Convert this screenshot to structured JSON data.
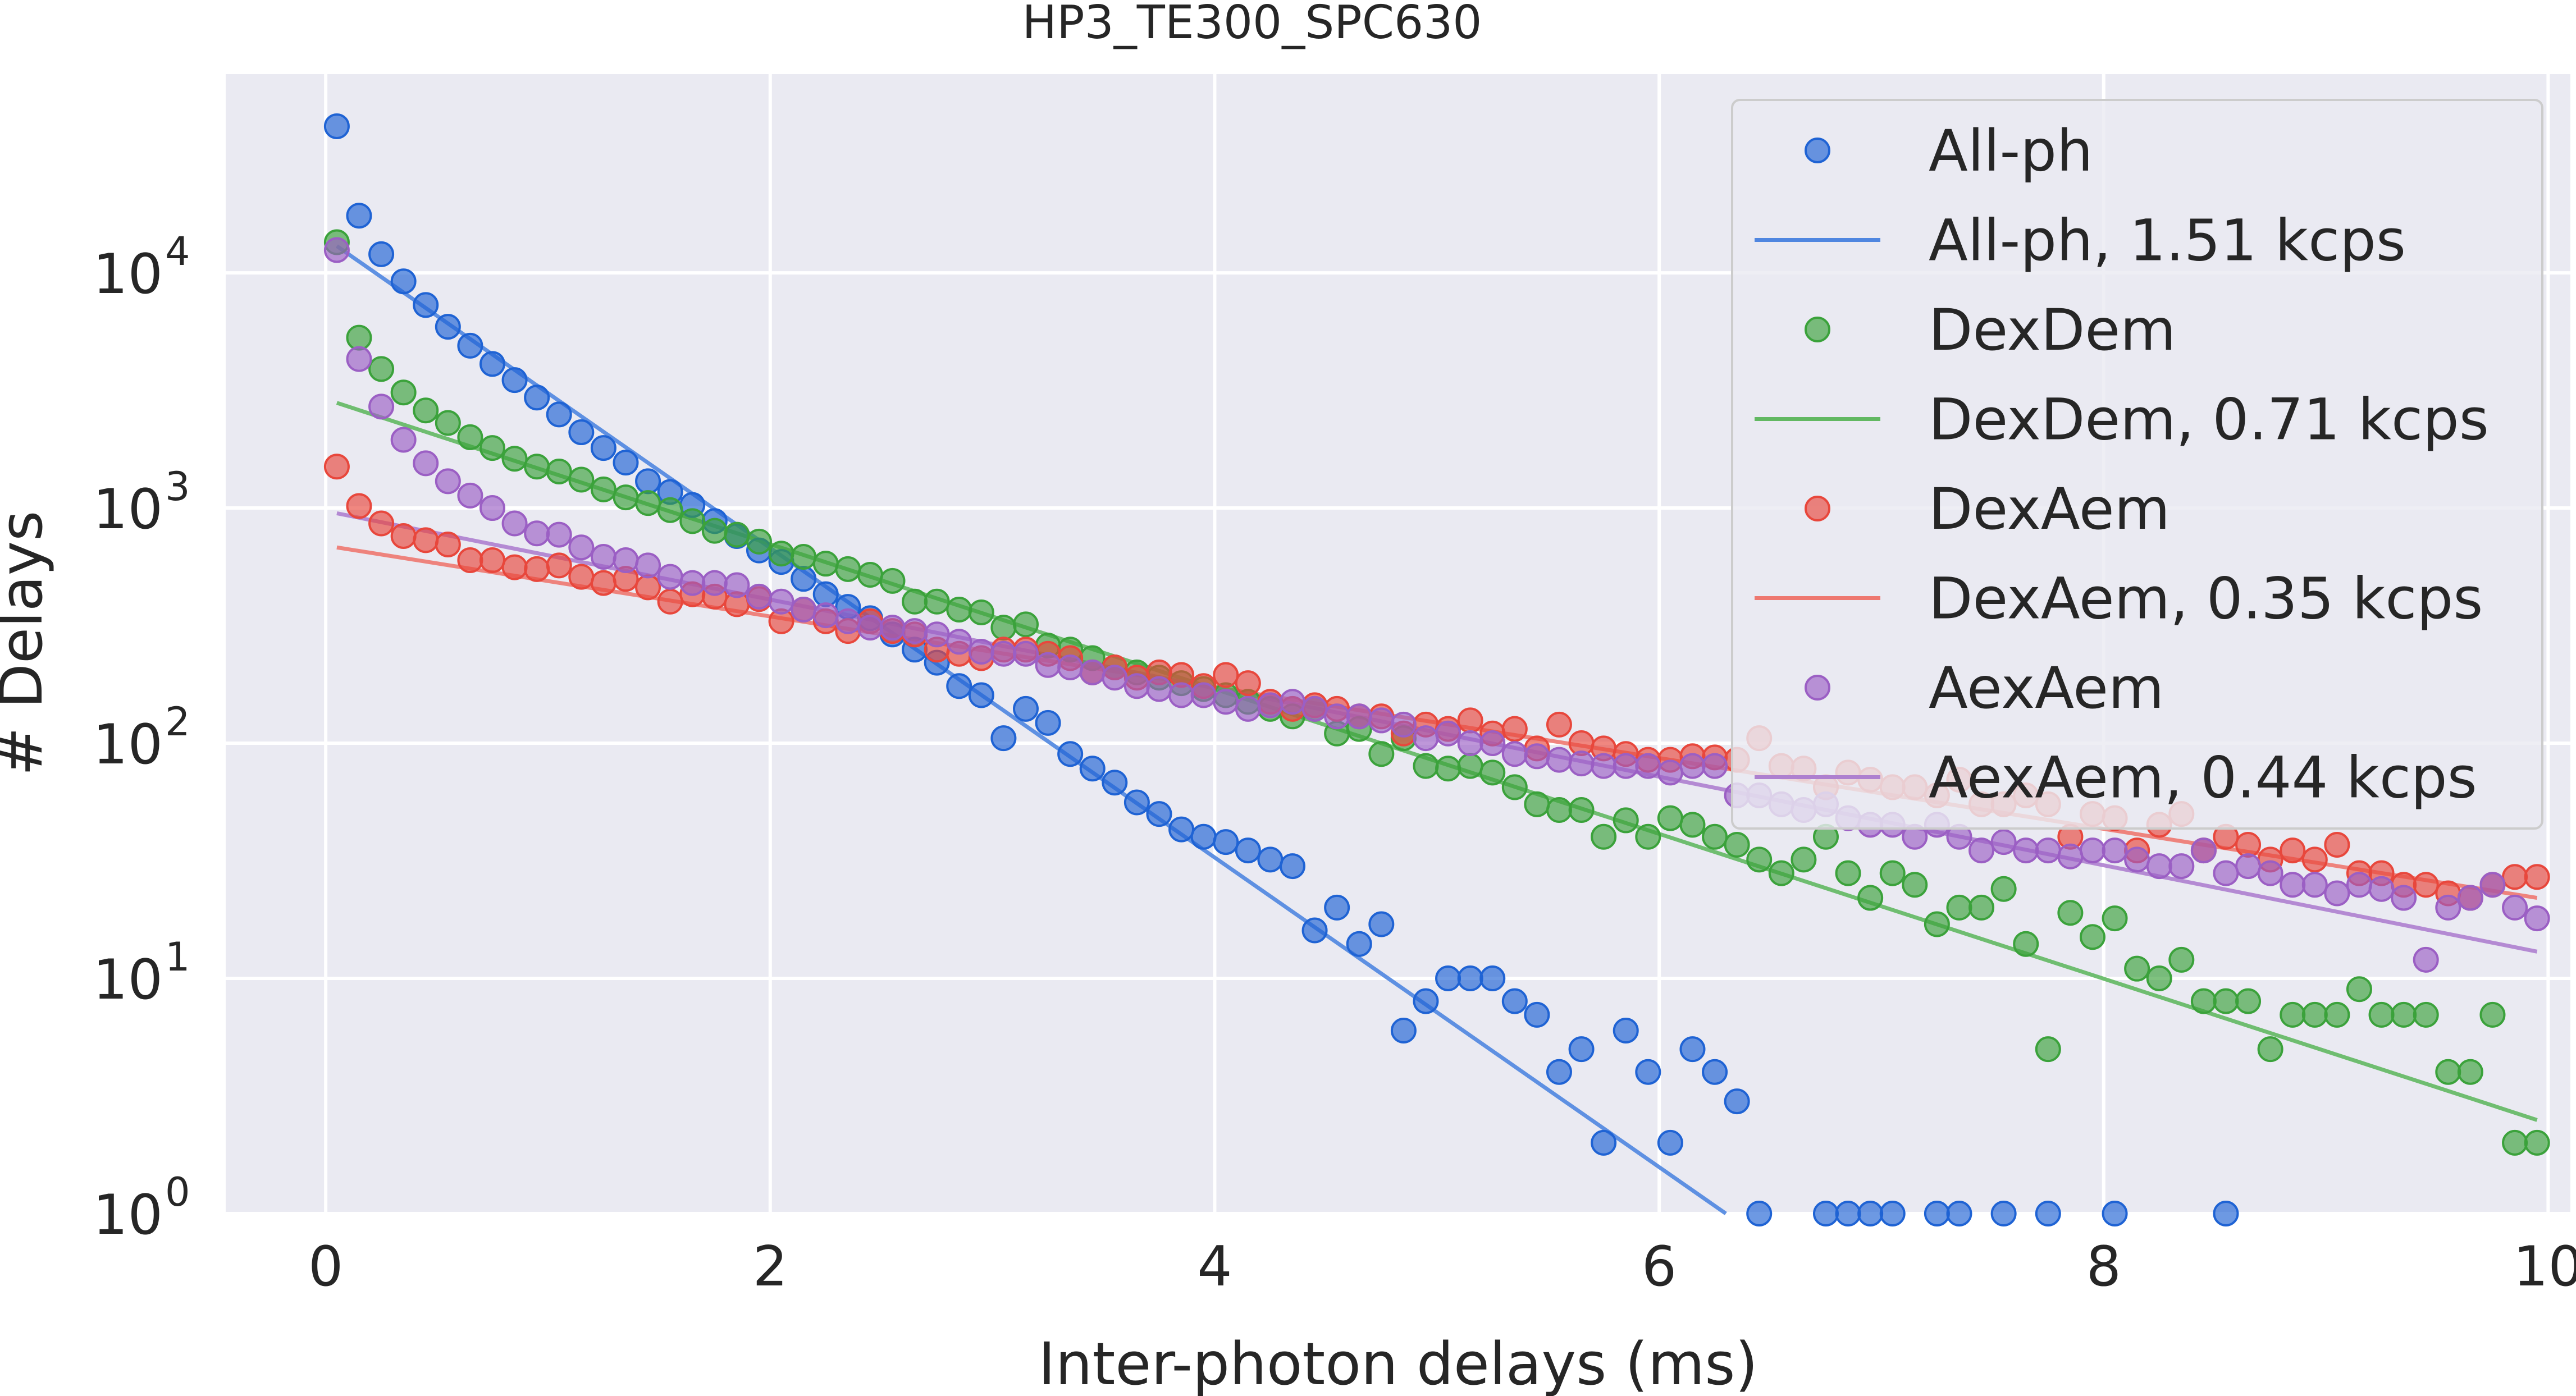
{
  "chart_data": {
    "type": "scatter",
    "title": "HP3_TE300_SPC630",
    "xlabel": "Inter-photon delays (ms)",
    "ylabel": "# Delays",
    "xlim": [
      -0.45,
      10.1
    ],
    "ylim": [
      1,
      70000
    ],
    "yscale": "log",
    "grid": true,
    "legend_position": "top-right",
    "x_ticks": [
      "0",
      "2",
      "4",
      "6",
      "8",
      "10"
    ],
    "x_tick_values": [
      0,
      2,
      4,
      6,
      8,
      10
    ],
    "y_ticks": [
      {
        "base": "10",
        "exp": "0",
        "value": 1
      },
      {
        "base": "10",
        "exp": "1",
        "value": 10
      },
      {
        "base": "10",
        "exp": "2",
        "value": 100
      },
      {
        "base": "10",
        "exp": "3",
        "value": 1000
      },
      {
        "base": "10",
        "exp": "4",
        "value": 10000
      }
    ],
    "colors": {
      "background": "#eaeaf2",
      "grid": "#ffffff",
      "all_ph": "#1f63d4",
      "all_ph_line": "#4f86e0",
      "dexdem": "#3ba23b",
      "dexdem_line": "#62b862",
      "dexaem": "#e8473c",
      "dexaem_line": "#ee7870",
      "aexaem": "#9b5fc4",
      "aexaem_line": "#ae80cf"
    },
    "legend": [
      {
        "label": "All-ph",
        "kind": "marker",
        "series": "all_ph"
      },
      {
        "label": "All-ph, 1.51 kcps",
        "kind": "line",
        "series": "all_ph"
      },
      {
        "label": "DexDem",
        "kind": "marker",
        "series": "dexdem"
      },
      {
        "label": "DexDem, 0.71 kcps",
        "kind": "line",
        "series": "dexdem"
      },
      {
        "label": "DexAem",
        "kind": "marker",
        "series": "dexaem"
      },
      {
        "label": "DexAem, 0.35 kcps",
        "kind": "line",
        "series": "dexaem"
      },
      {
        "label": "AexAem",
        "kind": "marker",
        "series": "aexaem"
      },
      {
        "label": "AexAem, 0.44 kcps",
        "kind": "line",
        "series": "aexaem"
      }
    ],
    "fits": [
      {
        "series": "all_ph",
        "x": [
          0.05,
          6.3
        ],
        "y": [
          13000,
          1.0
        ]
      },
      {
        "series": "dexdem",
        "x": [
          0.05,
          9.95
        ],
        "y": [
          2800,
          2.5
        ]
      },
      {
        "series": "dexaem",
        "x": [
          0.05,
          9.95
        ],
        "y": [
          680,
          22
        ]
      },
      {
        "series": "aexaem",
        "x": [
          0.05,
          9.95
        ],
        "y": [
          950,
          13
        ]
      }
    ],
    "series": [
      {
        "key": "all_ph",
        "x": [
          0.05,
          0.15,
          0.25,
          0.35,
          0.45,
          0.55,
          0.65,
          0.75,
          0.85,
          0.95,
          1.05,
          1.15,
          1.25,
          1.35,
          1.45,
          1.55,
          1.65,
          1.75,
          1.85,
          1.95,
          2.05,
          2.15,
          2.25,
          2.35,
          2.45,
          2.55,
          2.65,
          2.75,
          2.85,
          2.95,
          3.05,
          3.15,
          3.25,
          3.35,
          3.45,
          3.55,
          3.65,
          3.75,
          3.85,
          3.95,
          4.05,
          4.15,
          4.25,
          4.35,
          4.45,
          4.55,
          4.65,
          4.75,
          4.85,
          4.95,
          5.05,
          5.15,
          5.25,
          5.35,
          5.45,
          5.55,
          5.65,
          5.75,
          5.85,
          5.95,
          6.05,
          6.15,
          6.25,
          6.35,
          6.45,
          6.75,
          6.85,
          6.95,
          7.05,
          7.25,
          7.35,
          7.55,
          7.75,
          8.05,
          8.55
        ],
        "y": [
          42000,
          17500,
          12000,
          9200,
          7300,
          5900,
          4900,
          4100,
          3500,
          2950,
          2500,
          2100,
          1800,
          1560,
          1300,
          1170,
          1030,
          880,
          760,
          660,
          590,
          500,
          430,
          380,
          340,
          290,
          250,
          220,
          175,
          160,
          105,
          140,
          122,
          90,
          78,
          68,
          56,
          50,
          43,
          40,
          38,
          35,
          32,
          30,
          16,
          20,
          14,
          17,
          6,
          8,
          10,
          10,
          10,
          8,
          7,
          4,
          5,
          2,
          6,
          4,
          2,
          5,
          4,
          3,
          1,
          1,
          1,
          1,
          1,
          1,
          1,
          1,
          1,
          1,
          1
        ]
      },
      {
        "key": "dexdem",
        "x": [
          0.05,
          0.15,
          0.25,
          0.35,
          0.45,
          0.55,
          0.65,
          0.75,
          0.85,
          0.95,
          1.05,
          1.15,
          1.25,
          1.35,
          1.45,
          1.55,
          1.65,
          1.75,
          1.85,
          1.95,
          2.05,
          2.15,
          2.25,
          2.35,
          2.45,
          2.55,
          2.65,
          2.75,
          2.85,
          2.95,
          3.05,
          3.15,
          3.25,
          3.35,
          3.45,
          3.55,
          3.65,
          3.75,
          3.85,
          3.95,
          4.05,
          4.15,
          4.25,
          4.35,
          4.45,
          4.55,
          4.65,
          4.75,
          4.85,
          4.95,
          5.05,
          5.15,
          5.25,
          5.35,
          5.45,
          5.55,
          5.65,
          5.75,
          5.85,
          5.95,
          6.05,
          6.15,
          6.25,
          6.35,
          6.45,
          6.55,
          6.65,
          6.75,
          6.85,
          6.95,
          7.05,
          7.15,
          7.25,
          7.35,
          7.45,
          7.55,
          7.65,
          7.75,
          7.85,
          7.95,
          8.05,
          8.15,
          8.25,
          8.35,
          8.45,
          8.55,
          8.65,
          8.75,
          8.85,
          8.95,
          9.05,
          9.15,
          9.25,
          9.35,
          9.45,
          9.55,
          9.65,
          9.75,
          9.85,
          9.95
        ],
        "y": [
          13500,
          5300,
          3900,
          3100,
          2600,
          2300,
          2000,
          1800,
          1620,
          1500,
          1430,
          1320,
          1200,
          1110,
          1050,
          980,
          880,
          800,
          770,
          720,
          640,
          620,
          580,
          550,
          520,
          490,
          400,
          400,
          370,
          360,
          310,
          320,
          260,
          250,
          230,
          210,
          200,
          190,
          180,
          170,
          160,
          150,
          140,
          130,
          140,
          110,
          115,
          90,
          105,
          80,
          78,
          80,
          75,
          65,
          55,
          52,
          52,
          40,
          47,
          40,
          48,
          45,
          40,
          37,
          32,
          28,
          32,
          40,
          28,
          22,
          28,
          25,
          17,
          20,
          20,
          24,
          14,
          5,
          19,
          15,
          18,
          11,
          10,
          12,
          8,
          8,
          8,
          5,
          7,
          7,
          7,
          9,
          7,
          7,
          7,
          4,
          4,
          7,
          2,
          2
        ]
      },
      {
        "key": "dexaem",
        "x": [
          0.05,
          0.15,
          0.25,
          0.35,
          0.45,
          0.55,
          0.65,
          0.75,
          0.85,
          0.95,
          1.05,
          1.15,
          1.25,
          1.35,
          1.45,
          1.55,
          1.65,
          1.75,
          1.85,
          1.95,
          2.05,
          2.15,
          2.25,
          2.35,
          2.45,
          2.55,
          2.65,
          2.75,
          2.85,
          2.95,
          3.05,
          3.15,
          3.25,
          3.35,
          3.45,
          3.55,
          3.65,
          3.75,
          3.85,
          3.95,
          4.05,
          4.15,
          4.25,
          4.35,
          4.45,
          4.55,
          4.65,
          4.75,
          4.85,
          4.95,
          5.05,
          5.15,
          5.25,
          5.35,
          5.45,
          5.55,
          5.65,
          5.75,
          5.85,
          5.95,
          6.05,
          6.15,
          6.25,
          6.35,
          6.45,
          6.55,
          6.65,
          6.75,
          6.85,
          6.95,
          7.05,
          7.15,
          7.25,
          7.35,
          7.45,
          7.55,
          7.65,
          7.75,
          7.85,
          7.95,
          8.05,
          8.15,
          8.25,
          8.35,
          8.45,
          8.55,
          8.65,
          8.75,
          8.85,
          8.95,
          9.05,
          9.15,
          9.25,
          9.35,
          9.45,
          9.55,
          9.65,
          9.75,
          9.85,
          9.95
        ],
        "y": [
          1500,
          1020,
          860,
          760,
          730,
          700,
          600,
          600,
          560,
          550,
          570,
          510,
          480,
          500,
          460,
          400,
          430,
          420,
          390,
          410,
          330,
          370,
          330,
          300,
          330,
          300,
          290,
          250,
          240,
          230,
          250,
          250,
          240,
          230,
          200,
          210,
          190,
          200,
          195,
          175,
          195,
          180,
          150,
          140,
          145,
          140,
          130,
          130,
          110,
          120,
          115,
          125,
          110,
          115,
          95,
          120,
          100,
          95,
          90,
          85,
          85,
          88,
          87,
          85,
          105,
          80,
          78,
          65,
          75,
          70,
          65,
          65,
          60,
          70,
          55,
          55,
          60,
          55,
          40,
          50,
          48,
          35,
          45,
          50,
          35,
          40,
          37,
          32,
          35,
          32,
          37,
          28,
          28,
          25,
          25,
          23,
          22,
          25,
          27,
          27
        ]
      },
      {
        "key": "aexaem",
        "x": [
          0.05,
          0.15,
          0.25,
          0.35,
          0.45,
          0.55,
          0.65,
          0.75,
          0.85,
          0.95,
          1.05,
          1.15,
          1.25,
          1.35,
          1.45,
          1.55,
          1.65,
          1.75,
          1.85,
          1.95,
          2.05,
          2.15,
          2.25,
          2.35,
          2.45,
          2.55,
          2.65,
          2.75,
          2.85,
          2.95,
          3.05,
          3.15,
          3.25,
          3.35,
          3.45,
          3.55,
          3.65,
          3.75,
          3.85,
          3.95,
          4.05,
          4.15,
          4.25,
          4.35,
          4.45,
          4.55,
          4.65,
          4.75,
          4.85,
          4.95,
          5.05,
          5.15,
          5.25,
          5.35,
          5.45,
          5.55,
          5.65,
          5.75,
          5.85,
          5.95,
          6.05,
          6.15,
          6.25,
          6.35,
          6.45,
          6.55,
          6.65,
          6.75,
          6.85,
          6.95,
          7.05,
          7.15,
          7.25,
          7.35,
          7.45,
          7.55,
          7.65,
          7.75,
          7.85,
          7.95,
          8.05,
          8.15,
          8.25,
          8.35,
          8.45,
          8.55,
          8.65,
          8.75,
          8.85,
          8.95,
          9.05,
          9.15,
          9.25,
          9.35,
          9.45,
          9.55,
          9.65,
          9.75,
          9.85,
          9.95
        ],
        "y": [
          12500,
          4300,
          2700,
          1950,
          1550,
          1300,
          1130,
          1000,
          860,
          780,
          770,
          680,
          620,
          600,
          570,
          510,
          480,
          480,
          470,
          420,
          400,
          370,
          350,
          330,
          310,
          310,
          300,
          290,
          270,
          245,
          240,
          240,
          215,
          210,
          200,
          190,
          175,
          170,
          160,
          160,
          150,
          140,
          145,
          150,
          140,
          130,
          130,
          125,
          120,
          105,
          110,
          100,
          100,
          90,
          88,
          85,
          82,
          80,
          80,
          80,
          75,
          80,
          80,
          60,
          60,
          55,
          52,
          55,
          48,
          45,
          45,
          40,
          45,
          40,
          35,
          38,
          35,
          35,
          33,
          35,
          35,
          32,
          30,
          30,
          35,
          28,
          30,
          28,
          25,
          25,
          23,
          25,
          24,
          22,
          12,
          20,
          22,
          25,
          20,
          18
        ]
      }
    ]
  }
}
